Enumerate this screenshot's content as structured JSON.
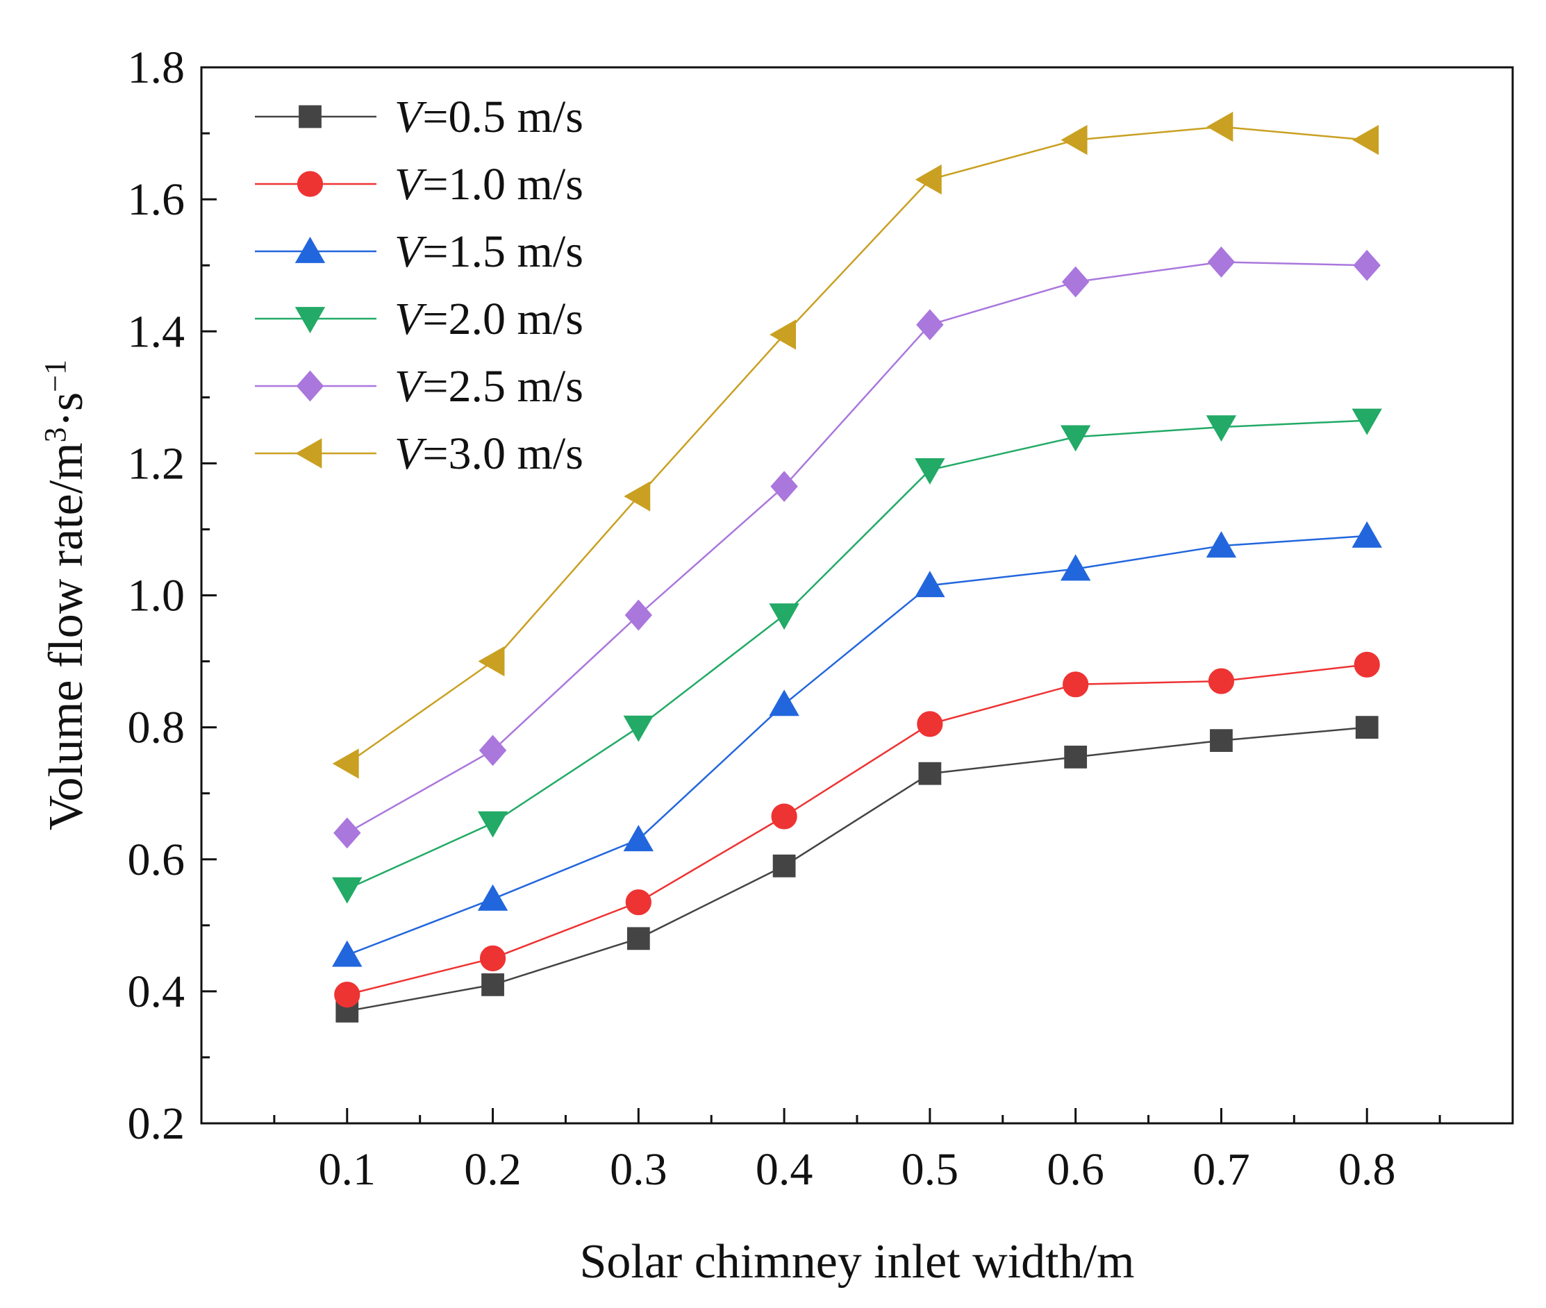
{
  "chart_data": {
    "type": "line",
    "xlabel": "Solar chimney inlet width/m",
    "ylabel": "Volume flow rate/m",
    "ylabel_sup1": "3",
    "ylabel_mid": "·s",
    "ylabel_sup2": "−1",
    "x": [
      0.1,
      0.2,
      0.3,
      0.4,
      0.5,
      0.6,
      0.7,
      0.8
    ],
    "x_tick_labels": [
      "0.1",
      "0.2",
      "0.3",
      "0.4",
      "0.5",
      "0.6",
      "0.7",
      "0.8"
    ],
    "y_tick_labels": [
      "0.2",
      "0.4",
      "0.6",
      "0.8",
      "1.0",
      "1.2",
      "1.4",
      "1.6",
      "1.8"
    ],
    "xlim": [
      0.0,
      0.9
    ],
    "ylim": [
      0.2,
      1.8
    ],
    "legend_position": "top-left",
    "series": [
      {
        "name": "V=0.5 m/s",
        "italic": "V",
        "rest": "=0.5 m/s",
        "color": "#444444",
        "marker": "square",
        "values": [
          0.37,
          0.41,
          0.48,
          0.59,
          0.73,
          0.755,
          0.78,
          0.8
        ]
      },
      {
        "name": "V=1.0 m/s",
        "italic": "V",
        "rest": "=1.0 m/s",
        "color": "#ee3333",
        "marker": "circle",
        "values": [
          0.395,
          0.45,
          0.535,
          0.665,
          0.805,
          0.865,
          0.87,
          0.895
        ]
      },
      {
        "name": "V=1.5 m/s",
        "italic": "V",
        "rest": "=1.5 m/s",
        "color": "#2266dd",
        "marker": "triangle-up",
        "values": [
          0.455,
          0.54,
          0.63,
          0.835,
          1.015,
          1.04,
          1.075,
          1.09
        ]
      },
      {
        "name": "V=2.0 m/s",
        "italic": "V",
        "rest": "=2.0 m/s",
        "color": "#22aa66",
        "marker": "triangle-down",
        "values": [
          0.555,
          0.655,
          0.8,
          0.97,
          1.19,
          1.24,
          1.255,
          1.265
        ]
      },
      {
        "name": "V=2.5 m/s",
        "italic": "V",
        "rest": "=2.5 m/s",
        "color": "#aa77dd",
        "marker": "diamond",
        "values": [
          0.64,
          0.765,
          0.97,
          1.165,
          1.41,
          1.475,
          1.505,
          1.5
        ]
      },
      {
        "name": "V=3.0 m/s",
        "italic": "V",
        "rest": "=3.0 m/s",
        "color": "#c9a021",
        "marker": "triangle-left",
        "values": [
          0.745,
          0.9,
          1.15,
          1.395,
          1.63,
          1.69,
          1.71,
          1.69
        ]
      }
    ]
  }
}
